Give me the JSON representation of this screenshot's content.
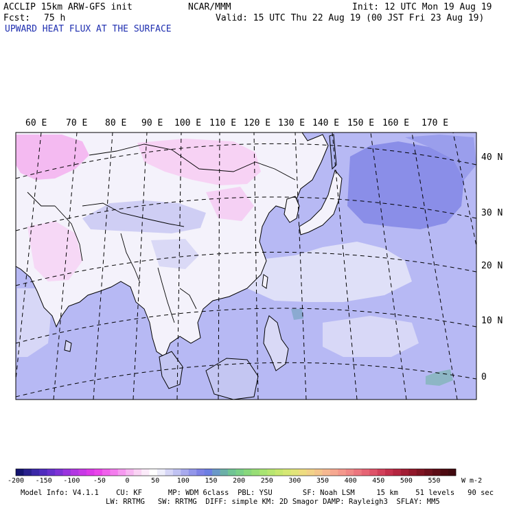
{
  "header": {
    "model": "ACCLIP 15km ARW-GFS init",
    "org": "NCAR/MMM",
    "init": "Init: 12 UTC Mon 19 Aug 19",
    "fcst_label": "Fcst:",
    "fcst_value": "75 h",
    "valid": "Valid: 15 UTC Thu 22 Aug 19 (00 JST Fri 23 Aug 19)",
    "field": "UPWARD HEAT FLUX AT THE SURFACE"
  },
  "map": {
    "lon_labels": [
      "60 E",
      "70 E",
      "80 E",
      "90 E",
      "100 E",
      "110 E",
      "120 E",
      "130 E",
      "140 E",
      "150 E",
      "160 E",
      "170 E"
    ],
    "lat_labels": [
      "40 N",
      "30 N",
      "20 N",
      "10 N",
      "0"
    ],
    "colors": {
      "land_neutral": "#f4f2fb",
      "ocean": "#b7b9f4",
      "strong_ocean": "#8a8ee8",
      "negative": "#f2a9ee",
      "coast": "#000000"
    }
  },
  "colorbar": {
    "tick_labels": [
      "-200",
      "-150",
      "-100",
      "-50",
      "0",
      "50",
      "100",
      "150",
      "200",
      "250",
      "300",
      "350",
      "400",
      "450",
      "500",
      "550"
    ],
    "units": "W m-2",
    "colors": [
      "#14146e",
      "#28208c",
      "#3a28a8",
      "#4f2cbe",
      "#6630cc",
      "#7e32d6",
      "#9a34de",
      "#b236e2",
      "#c838e6",
      "#dc3ae8",
      "#ea46ea",
      "#f060ec",
      "#f47cee",
      "#f69af0",
      "#f8b8f2",
      "#fad4f4",
      "#fcebfa",
      "#ffffff",
      "#eeeefb",
      "#d6d6f6",
      "#c0c2f2",
      "#a8aaee",
      "#9296ea",
      "#7e82e6",
      "#6c7ee2",
      "#6a98c8",
      "#6cb0a8",
      "#70c494",
      "#7ad088",
      "#88d87c",
      "#98de76",
      "#a8e472",
      "#b8e670",
      "#c8e870",
      "#d6e874",
      "#e2e47a",
      "#eedc80",
      "#f2d288",
      "#f4c68c",
      "#f6b890",
      "#f6a890",
      "#f4988c",
      "#f08886",
      "#ec767e",
      "#e66474",
      "#de5268",
      "#d2405a",
      "#c4304c",
      "#b42640",
      "#a21e34",
      "#90182a",
      "#7e1422",
      "#6c101c",
      "#5c0c16",
      "#4e0a12",
      "#420a10"
    ]
  },
  "footer": {
    "line1": "Model Info: V4.1.1    CU: KF      MP: WDM 6class  PBL: YSU       SF: Noah LSM     15 km    51 levels   90 sec",
    "line2": "LW: RRTMG   SW: RRTMG  DIFF: simple KM: 2D Smagor DAMP: Rayleigh3  SFLAY: MM5"
  }
}
